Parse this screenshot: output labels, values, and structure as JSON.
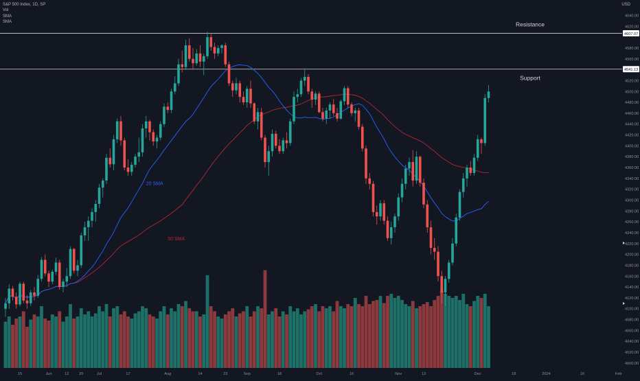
{
  "header": {
    "symbol_line": "S&P 500 Index, 1D, SP",
    "indicators": [
      "Vol",
      "SMA",
      "SMA"
    ],
    "currency": "USD"
  },
  "colors": {
    "background": "#131722",
    "up": "#26a69a",
    "down": "#ef5350",
    "up_volume": "#1e6f67",
    "down_volume": "#8d3a3e",
    "sma20": "#2962ff",
    "sma50": "#b22833",
    "level_line": "#d1d4dc",
    "axis_text": "#8b8f99"
  },
  "chart_data": {
    "type": "candlestick",
    "title": "S&P 500 Index, 1D, SP",
    "y_axis_ticks": [
      4000,
      4020,
      4040,
      4060,
      4080,
      4100,
      4120,
      4140,
      4160,
      4180,
      4200,
      4220,
      4240,
      4260,
      4280,
      4300,
      4320,
      4340,
      4360,
      4380,
      4400,
      4420,
      4440,
      4460,
      4480,
      4500,
      4520,
      4540,
      4560,
      4580,
      4600,
      4620,
      4640
    ],
    "ylim": [
      3996,
      4652
    ],
    "x_tick_labels": [
      {
        "label": "15",
        "candle": 4
      },
      {
        "label": "Jun",
        "candle": 12
      },
      {
        "label": "12",
        "candle": 17
      },
      {
        "label": "20",
        "candle": 21
      },
      {
        "label": "Jul",
        "candle": 26
      },
      {
        "label": "17",
        "candle": 34
      },
      {
        "label": "Aug",
        "candle": 45
      },
      {
        "label": "14",
        "candle": 54
      },
      {
        "label": "23",
        "candle": 61
      },
      {
        "label": "Sep",
        "candle": 67
      },
      {
        "label": "18",
        "candle": 76
      },
      {
        "label": "Oct",
        "candle": 87
      },
      {
        "label": "16",
        "candle": 96
      },
      {
        "label": "Nov",
        "candle": 109
      },
      {
        "label": "13",
        "candle": 116
      },
      {
        "label": "Dec",
        "candle": 131
      },
      {
        "label": "18",
        "candle": 141
      },
      {
        "label": "2024",
        "candle": 150
      },
      {
        "label": "16",
        "candle": 160
      },
      {
        "label": "Feb",
        "candle": 170
      }
    ],
    "levels": [
      {
        "name": "Resistance",
        "value": 4607.07,
        "label": "4607.07"
      },
      {
        "name": "Support",
        "value": 4541.13,
        "label": "4541.13"
      }
    ],
    "annotations": [
      {
        "text": "20 SMA",
        "candle": 39,
        "price": 4328
      },
      {
        "text": "50 SMA",
        "candle": 45,
        "price": 4226
      }
    ],
    "last_candle_index": 134,
    "candles": [
      {
        "o": 4100,
        "h": 4120,
        "l": 4085,
        "c": 4110
      },
      {
        "o": 4110,
        "h": 4145,
        "l": 4100,
        "c": 4137
      },
      {
        "o": 4137,
        "h": 4142,
        "l": 4115,
        "c": 4122
      },
      {
        "o": 4122,
        "h": 4130,
        "l": 4100,
        "c": 4108
      },
      {
        "o": 4108,
        "h": 4150,
        "l": 4105,
        "c": 4146
      },
      {
        "o": 4146,
        "h": 4150,
        "l": 4110,
        "c": 4115
      },
      {
        "o": 4115,
        "h": 4125,
        "l": 4100,
        "c": 4110
      },
      {
        "o": 4110,
        "h": 4135,
        "l": 4105,
        "c": 4130
      },
      {
        "o": 4130,
        "h": 4140,
        "l": 4115,
        "c": 4124
      },
      {
        "o": 4124,
        "h": 4162,
        "l": 4120,
        "c": 4155
      },
      {
        "o": 4155,
        "h": 4195,
        "l": 4150,
        "c": 4190
      },
      {
        "o": 4190,
        "h": 4200,
        "l": 4160,
        "c": 4165
      },
      {
        "o": 4165,
        "h": 4170,
        "l": 4140,
        "c": 4150
      },
      {
        "o": 4150,
        "h": 4172,
        "l": 4145,
        "c": 4168
      },
      {
        "o": 4168,
        "h": 4194,
        "l": 4162,
        "c": 4185
      },
      {
        "o": 4185,
        "h": 4190,
        "l": 4135,
        "c": 4140
      },
      {
        "o": 4140,
        "h": 4155,
        "l": 4130,
        "c": 4150
      },
      {
        "o": 4150,
        "h": 4175,
        "l": 4140,
        "c": 4160
      },
      {
        "o": 4160,
        "h": 4215,
        "l": 4155,
        "c": 4210
      },
      {
        "o": 4210,
        "h": 4212,
        "l": 4165,
        "c": 4170
      },
      {
        "o": 4170,
        "h": 4190,
        "l": 4160,
        "c": 4180
      },
      {
        "o": 4180,
        "h": 4240,
        "l": 4175,
        "c": 4235
      },
      {
        "o": 4235,
        "h": 4260,
        "l": 4225,
        "c": 4250
      },
      {
        "o": 4250,
        "h": 4270,
        "l": 4225,
        "c": 4262
      },
      {
        "o": 4262,
        "h": 4285,
        "l": 4250,
        "c": 4278
      },
      {
        "o": 4278,
        "h": 4300,
        "l": 4260,
        "c": 4293
      },
      {
        "o": 4293,
        "h": 4330,
        "l": 4285,
        "c": 4323
      },
      {
        "o": 4323,
        "h": 4340,
        "l": 4305,
        "c": 4336
      },
      {
        "o": 4336,
        "h": 4385,
        "l": 4330,
        "c": 4378
      },
      {
        "o": 4378,
        "h": 4395,
        "l": 4360,
        "c": 4366
      },
      {
        "o": 4366,
        "h": 4420,
        "l": 4355,
        "c": 4412
      },
      {
        "o": 4412,
        "h": 4450,
        "l": 4405,
        "c": 4445
      },
      {
        "o": 4445,
        "h": 4455,
        "l": 4400,
        "c": 4410
      },
      {
        "o": 4410,
        "h": 4415,
        "l": 4355,
        "c": 4360
      },
      {
        "o": 4360,
        "h": 4375,
        "l": 4345,
        "c": 4352
      },
      {
        "o": 4352,
        "h": 4370,
        "l": 4345,
        "c": 4365
      },
      {
        "o": 4365,
        "h": 4385,
        "l": 4360,
        "c": 4380
      },
      {
        "o": 4380,
        "h": 4415,
        "l": 4370,
        "c": 4388
      },
      {
        "o": 4388,
        "h": 4440,
        "l": 4380,
        "c": 4432
      },
      {
        "o": 4432,
        "h": 4455,
        "l": 4415,
        "c": 4445
      },
      {
        "o": 4445,
        "h": 4448,
        "l": 4410,
        "c": 4425
      },
      {
        "o": 4425,
        "h": 4430,
        "l": 4400,
        "c": 4408
      },
      {
        "o": 4408,
        "h": 4420,
        "l": 4395,
        "c": 4415
      },
      {
        "o": 4415,
        "h": 4445,
        "l": 4410,
        "c": 4440
      },
      {
        "o": 4440,
        "h": 4478,
        "l": 4435,
        "c": 4472
      },
      {
        "o": 4472,
        "h": 4480,
        "l": 4460,
        "c": 4466
      },
      {
        "o": 4466,
        "h": 4505,
        "l": 4460,
        "c": 4500
      },
      {
        "o": 4500,
        "h": 4528,
        "l": 4495,
        "c": 4515
      },
      {
        "o": 4515,
        "h": 4560,
        "l": 4510,
        "c": 4550
      },
      {
        "o": 4550,
        "h": 4575,
        "l": 4535,
        "c": 4545
      },
      {
        "o": 4545,
        "h": 4595,
        "l": 4540,
        "c": 4585
      },
      {
        "o": 4585,
        "h": 4598,
        "l": 4555,
        "c": 4560
      },
      {
        "o": 4560,
        "h": 4580,
        "l": 4540,
        "c": 4552
      },
      {
        "o": 4552,
        "h": 4578,
        "l": 4548,
        "c": 4570
      },
      {
        "o": 4570,
        "h": 4585,
        "l": 4545,
        "c": 4555
      },
      {
        "o": 4555,
        "h": 4570,
        "l": 4530,
        "c": 4565
      },
      {
        "o": 4565,
        "h": 4610,
        "l": 4560,
        "c": 4600
      },
      {
        "o": 4600,
        "h": 4607,
        "l": 4575,
        "c": 4582
      },
      {
        "o": 4582,
        "h": 4590,
        "l": 4560,
        "c": 4570
      },
      {
        "o": 4570,
        "h": 4585,
        "l": 4565,
        "c": 4580
      },
      {
        "o": 4580,
        "h": 4587,
        "l": 4570,
        "c": 4585
      },
      {
        "o": 4585,
        "h": 4590,
        "l": 4545,
        "c": 4550
      },
      {
        "o": 4550,
        "h": 4555,
        "l": 4510,
        "c": 4515
      },
      {
        "o": 4515,
        "h": 4520,
        "l": 4490,
        "c": 4502
      },
      {
        "o": 4502,
        "h": 4525,
        "l": 4495,
        "c": 4515
      },
      {
        "o": 4515,
        "h": 4520,
        "l": 4480,
        "c": 4490
      },
      {
        "o": 4490,
        "h": 4500,
        "l": 4475,
        "c": 4480
      },
      {
        "o": 4480,
        "h": 4510,
        "l": 4470,
        "c": 4505
      },
      {
        "o": 4505,
        "h": 4520,
        "l": 4470,
        "c": 4478
      },
      {
        "o": 4478,
        "h": 4480,
        "l": 4440,
        "c": 4445
      },
      {
        "o": 4445,
        "h": 4470,
        "l": 4430,
        "c": 4462
      },
      {
        "o": 4462,
        "h": 4470,
        "l": 4410,
        "c": 4415
      },
      {
        "o": 4415,
        "h": 4420,
        "l": 4360,
        "c": 4370
      },
      {
        "o": 4370,
        "h": 4400,
        "l": 4345,
        "c": 4390
      },
      {
        "o": 4390,
        "h": 4430,
        "l": 4380,
        "c": 4422
      },
      {
        "o": 4422,
        "h": 4428,
        "l": 4395,
        "c": 4400
      },
      {
        "o": 4400,
        "h": 4412,
        "l": 4385,
        "c": 4390
      },
      {
        "o": 4390,
        "h": 4415,
        "l": 4385,
        "c": 4410
      },
      {
        "o": 4410,
        "h": 4425,
        "l": 4395,
        "c": 4405
      },
      {
        "o": 4405,
        "h": 4450,
        "l": 4400,
        "c": 4445
      },
      {
        "o": 4445,
        "h": 4500,
        "l": 4440,
        "c": 4490
      },
      {
        "o": 4490,
        "h": 4505,
        "l": 4480,
        "c": 4495
      },
      {
        "o": 4495,
        "h": 4525,
        "l": 4490,
        "c": 4520
      },
      {
        "o": 4520,
        "h": 4540,
        "l": 4510,
        "c": 4527
      },
      {
        "o": 4527,
        "h": 4532,
        "l": 4495,
        "c": 4500
      },
      {
        "o": 4500,
        "h": 4505,
        "l": 4470,
        "c": 4485
      },
      {
        "o": 4485,
        "h": 4500,
        "l": 4475,
        "c": 4496
      },
      {
        "o": 4496,
        "h": 4500,
        "l": 4460,
        "c": 4462
      },
      {
        "o": 4462,
        "h": 4470,
        "l": 4445,
        "c": 4450
      },
      {
        "o": 4450,
        "h": 4470,
        "l": 4440,
        "c": 4465
      },
      {
        "o": 4465,
        "h": 4480,
        "l": 4450,
        "c": 4476
      },
      {
        "o": 4476,
        "h": 4486,
        "l": 4455,
        "c": 4460
      },
      {
        "o": 4460,
        "h": 4470,
        "l": 4445,
        "c": 4450
      },
      {
        "o": 4450,
        "h": 4485,
        "l": 4448,
        "c": 4482
      },
      {
        "o": 4482,
        "h": 4510,
        "l": 4475,
        "c": 4506
      },
      {
        "o": 4506,
        "h": 4510,
        "l": 4470,
        "c": 4476
      },
      {
        "o": 4476,
        "h": 4480,
        "l": 4455,
        "c": 4460
      },
      {
        "o": 4460,
        "h": 4470,
        "l": 4445,
        "c": 4465
      },
      {
        "o": 4465,
        "h": 4470,
        "l": 4430,
        "c": 4435
      },
      {
        "o": 4435,
        "h": 4440,
        "l": 4390,
        "c": 4395
      },
      {
        "o": 4395,
        "h": 4400,
        "l": 4330,
        "c": 4340
      },
      {
        "o": 4340,
        "h": 4350,
        "l": 4320,
        "c": 4330
      },
      {
        "o": 4330,
        "h": 4335,
        "l": 4270,
        "c": 4278
      },
      {
        "o": 4278,
        "h": 4290,
        "l": 4255,
        "c": 4270
      },
      {
        "o": 4270,
        "h": 4300,
        "l": 4262,
        "c": 4294
      },
      {
        "o": 4294,
        "h": 4300,
        "l": 4255,
        "c": 4262
      },
      {
        "o": 4262,
        "h": 4270,
        "l": 4225,
        "c": 4230
      },
      {
        "o": 4230,
        "h": 4260,
        "l": 4218,
        "c": 4250
      },
      {
        "o": 4250,
        "h": 4275,
        "l": 4240,
        "c": 4270
      },
      {
        "o": 4270,
        "h": 4312,
        "l": 4262,
        "c": 4305
      },
      {
        "o": 4305,
        "h": 4340,
        "l": 4296,
        "c": 4330
      },
      {
        "o": 4330,
        "h": 4365,
        "l": 4320,
        "c": 4358
      },
      {
        "o": 4358,
        "h": 4378,
        "l": 4345,
        "c": 4370
      },
      {
        "o": 4370,
        "h": 4392,
        "l": 4325,
        "c": 4336
      },
      {
        "o": 4336,
        "h": 4390,
        "l": 4330,
        "c": 4380
      },
      {
        "o": 4380,
        "h": 4382,
        "l": 4325,
        "c": 4332
      },
      {
        "o": 4332,
        "h": 4340,
        "l": 4285,
        "c": 4292
      },
      {
        "o": 4292,
        "h": 4300,
        "l": 4240,
        "c": 4250
      },
      {
        "o": 4250,
        "h": 4262,
        "l": 4200,
        "c": 4212
      },
      {
        "o": 4212,
        "h": 4230,
        "l": 4190,
        "c": 4205
      },
      {
        "o": 4205,
        "h": 4215,
        "l": 4150,
        "c": 4160
      },
      {
        "o": 4160,
        "h": 4170,
        "l": 4110,
        "c": 4130
      },
      {
        "o": 4130,
        "h": 4160,
        "l": 4105,
        "c": 4155
      },
      {
        "o": 4155,
        "h": 4190,
        "l": 4148,
        "c": 4185
      },
      {
        "o": 4185,
        "h": 4230,
        "l": 4180,
        "c": 4220
      },
      {
        "o": 4220,
        "h": 4275,
        "l": 4215,
        "c": 4268
      },
      {
        "o": 4268,
        "h": 4320,
        "l": 4262,
        "c": 4315
      },
      {
        "o": 4315,
        "h": 4350,
        "l": 4305,
        "c": 4340
      },
      {
        "o": 4340,
        "h": 4365,
        "l": 4325,
        "c": 4360
      },
      {
        "o": 4360,
        "h": 4372,
        "l": 4345,
        "c": 4350
      },
      {
        "o": 4350,
        "h": 4385,
        "l": 4345,
        "c": 4378
      },
      {
        "o": 4378,
        "h": 4420,
        "l": 4372,
        "c": 4412
      },
      {
        "o": 4412,
        "h": 4415,
        "l": 4385,
        "c": 4405
      },
      {
        "o": 4405,
        "h": 4495,
        "l": 4400,
        "c": 4488
      },
      {
        "o": 4488,
        "h": 4512,
        "l": 4480,
        "c": 4500
      }
    ],
    "volume_ratio": [
      0.45,
      0.5,
      0.42,
      0.48,
      0.5,
      0.55,
      0.4,
      0.47,
      0.52,
      0.5,
      0.6,
      0.48,
      0.46,
      0.52,
      0.5,
      0.55,
      0.45,
      0.5,
      0.62,
      0.48,
      0.5,
      0.58,
      0.52,
      0.55,
      0.5,
      0.53,
      0.6,
      0.55,
      0.62,
      0.5,
      0.58,
      0.6,
      0.52,
      0.55,
      0.5,
      0.48,
      0.53,
      0.55,
      0.6,
      0.58,
      0.52,
      0.5,
      0.48,
      0.55,
      0.6,
      0.52,
      0.58,
      0.55,
      0.62,
      0.6,
      0.65,
      0.58,
      0.55,
      0.55,
      0.5,
      0.52,
      0.9,
      0.6,
      0.55,
      0.5,
      0.48,
      0.52,
      0.55,
      0.58,
      0.5,
      0.53,
      0.55,
      0.6,
      0.5,
      0.55,
      0.6,
      0.58,
      0.95,
      0.52,
      0.55,
      0.58,
      0.5,
      0.55,
      0.52,
      0.6,
      0.55,
      0.58,
      0.52,
      0.55,
      0.57,
      0.6,
      0.62,
      0.55,
      0.6,
      0.58,
      0.6,
      0.55,
      0.65,
      0.6,
      0.58,
      0.62,
      0.6,
      0.68,
      0.62,
      0.6,
      0.7,
      0.62,
      0.65,
      0.66,
      0.7,
      0.63,
      0.7,
      0.72,
      0.68,
      0.7,
      0.66,
      0.62,
      0.6,
      0.65,
      0.58,
      0.6,
      0.62,
      0.64,
      0.6,
      0.66,
      0.7,
      0.75,
      0.72,
      0.7,
      0.68,
      0.7,
      0.66,
      0.72,
      0.62,
      0.6,
      0.65,
      0.7,
      0.68,
      0.72,
      0.6
    ]
  }
}
